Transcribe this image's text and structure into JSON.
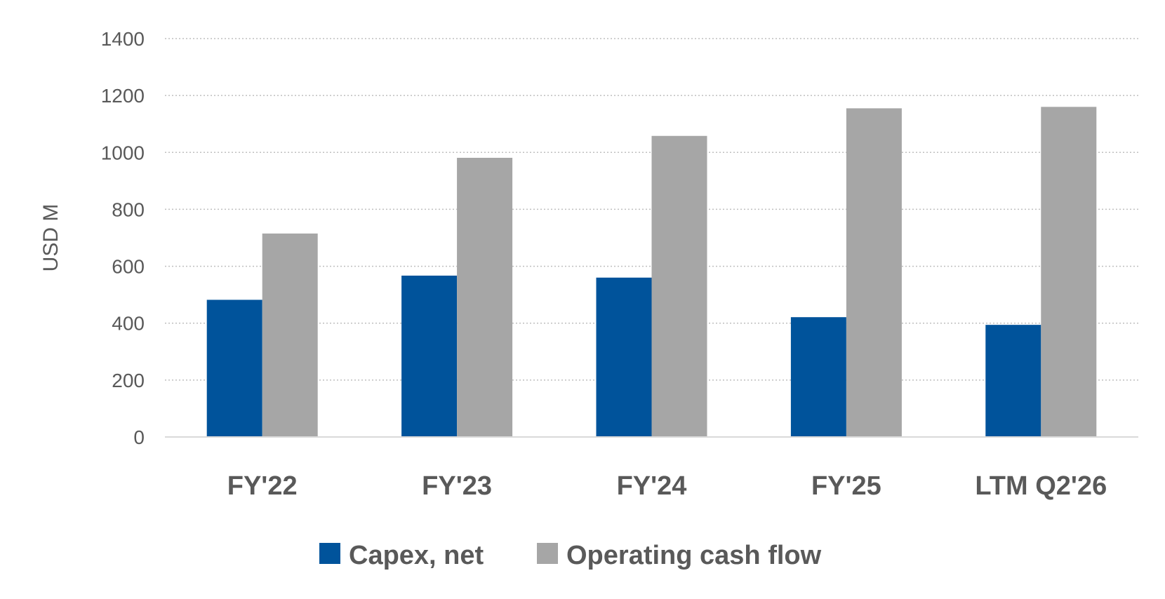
{
  "chart_data": {
    "type": "bar",
    "title": "",
    "xlabel": "",
    "ylabel": "USD M",
    "ylim": [
      0,
      1400
    ],
    "yticks": [
      0,
      200,
      400,
      600,
      800,
      1000,
      1200,
      1400
    ],
    "categories": [
      "FY'22",
      "FY'23",
      "FY'24",
      "FY'25",
      "LTM Q2'26"
    ],
    "series": [
      {
        "name": "Capex, net",
        "color": "#00539b",
        "values": [
          482,
          567,
          560,
          421,
          394
        ]
      },
      {
        "name": "Operating cash flow",
        "color": "#a6a6a6",
        "values": [
          715,
          981,
          1058,
          1155,
          1160
        ]
      }
    ],
    "grid": true,
    "legend": "bottom"
  }
}
